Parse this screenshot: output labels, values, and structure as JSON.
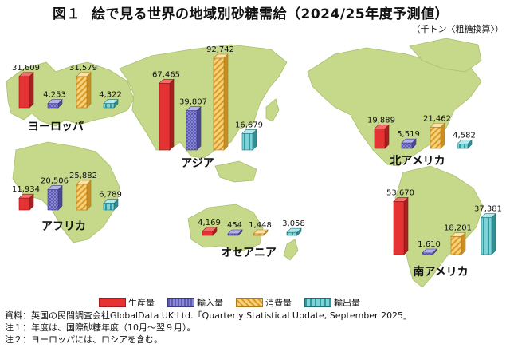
{
  "title": {
    "figure": "図１",
    "text": "絵で見る世界の地域別砂糖需給（2024/25年度予測値）"
  },
  "unit": "（千トン〈粗糖換算〉）",
  "colors": {
    "land": "#c6d98a",
    "production": "#e53232",
    "import": "#7a78c8",
    "consumption": "#f2c25a",
    "export": "#6cc8cc"
  },
  "legend": [
    {
      "key": "production",
      "label": "生産量"
    },
    {
      "key": "import",
      "label": "輸入量"
    },
    {
      "key": "consumption",
      "label": "消費量"
    },
    {
      "key": "export",
      "label": "輸出量"
    }
  ],
  "chart_data": {
    "type": "bar",
    "categories": [
      "ヨーロッパ",
      "アジア",
      "北アメリカ",
      "アフリカ",
      "オセアニア",
      "南アメリカ"
    ],
    "series": [
      {
        "name": "生産量",
        "values": [
          31609,
          67465,
          19889,
          11934,
          4169,
          53670
        ]
      },
      {
        "name": "輸入量",
        "values": [
          4253,
          39807,
          5519,
          20506,
          454,
          1610
        ]
      },
      {
        "name": "消費量",
        "values": [
          31579,
          92742,
          21462,
          25882,
          1448,
          18201
        ]
      },
      {
        "name": "輸出量",
        "values": [
          4322,
          16679,
          4582,
          6789,
          3058,
          37381
        ]
      }
    ],
    "value_labels": [
      [
        "31,609",
        "4,253",
        "31,579",
        "4,322"
      ],
      [
        "67,465",
        "39,807",
        "92,742",
        "16,679"
      ],
      [
        "19,889",
        "5,519",
        "21,462",
        "4,582"
      ],
      [
        "11,934",
        "20,506",
        "25,882",
        "6,789"
      ],
      [
        "4,169",
        "454",
        "1,448",
        "3,058"
      ],
      [
        "53,670",
        "1,610",
        "18,201",
        "37,381"
      ]
    ]
  },
  "notes": [
    "資料：英国の民間調査会社GlobalData UK Ltd.「Quarterly Statistical Update, September 2025」",
    "注１：年度は、国際砂糖年度（10月～翌９月）。",
    "注２：ヨーロッパには、ロシアを含む。"
  ]
}
